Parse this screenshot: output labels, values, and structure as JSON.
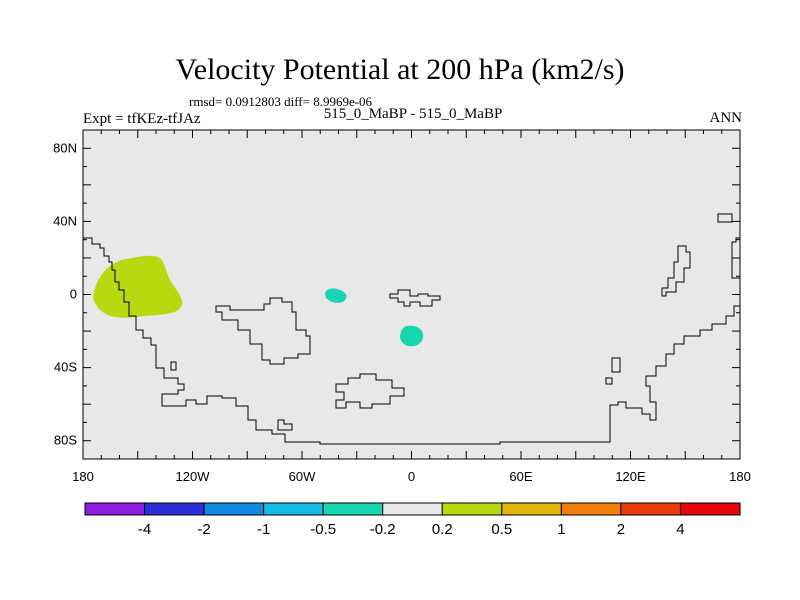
{
  "title": "Velocity Potential at 200 hPa (km2/s)",
  "stats": "rmsd= 0.0912803 diff= 8.9969e-06",
  "expt": "Expt = tfKEz-tfJAz",
  "cases": "515_0_MaBP - 515_0_MaBP",
  "season": "ANN",
  "map": {
    "projection": "cylindrical equidistant",
    "lon_range": [
      -180,
      180
    ],
    "lat_range": [
      -90,
      90
    ],
    "background_color": "#e8e8e8",
    "lat_ticks": [
      {
        "value": 80,
        "label": "80N"
      },
      {
        "value": 40,
        "label": "40N"
      },
      {
        "value": 0,
        "label": "0"
      },
      {
        "value": -40,
        "label": "40S"
      },
      {
        "value": -80,
        "label": "80S"
      }
    ],
    "lon_ticks": [
      {
        "value": -180,
        "label": "180"
      },
      {
        "value": -120,
        "label": "120W"
      },
      {
        "value": -60,
        "label": "60W"
      },
      {
        "value": 0,
        "label": "0"
      },
      {
        "value": 60,
        "label": "60E"
      },
      {
        "value": 120,
        "label": "120E"
      },
      {
        "value": 180,
        "label": "180"
      }
    ],
    "anomalies": [
      {
        "name": "east-pacific-positive",
        "class": "0.2 to 0.5",
        "color": "#b8d80f",
        "center_lon": -164,
        "center_lat": -1
      },
      {
        "name": "atlantic-negative-north",
        "class": "-0.5 to -0.2",
        "color": "#16d7b0",
        "center_lon": -41,
        "center_lat": -1
      },
      {
        "name": "atlantic-negative-south",
        "class": "-0.5 to -0.2",
        "color": "#16d7b0",
        "center_lon": -1,
        "center_lat": -22
      }
    ]
  },
  "colorbar": {
    "colors": [
      "#8f1fe0",
      "#2a2fd8",
      "#1388e0",
      "#14bce6",
      "#16d7b0",
      "#e8e8e8",
      "#b8d80f",
      "#e2b50b",
      "#ef7f0a",
      "#ec3c0a",
      "#e6080a"
    ],
    "labels": [
      "-4",
      "-2",
      "-1",
      "-0.5",
      "-0.2",
      "0.2",
      "0.5",
      "1",
      "2",
      "4"
    ]
  }
}
